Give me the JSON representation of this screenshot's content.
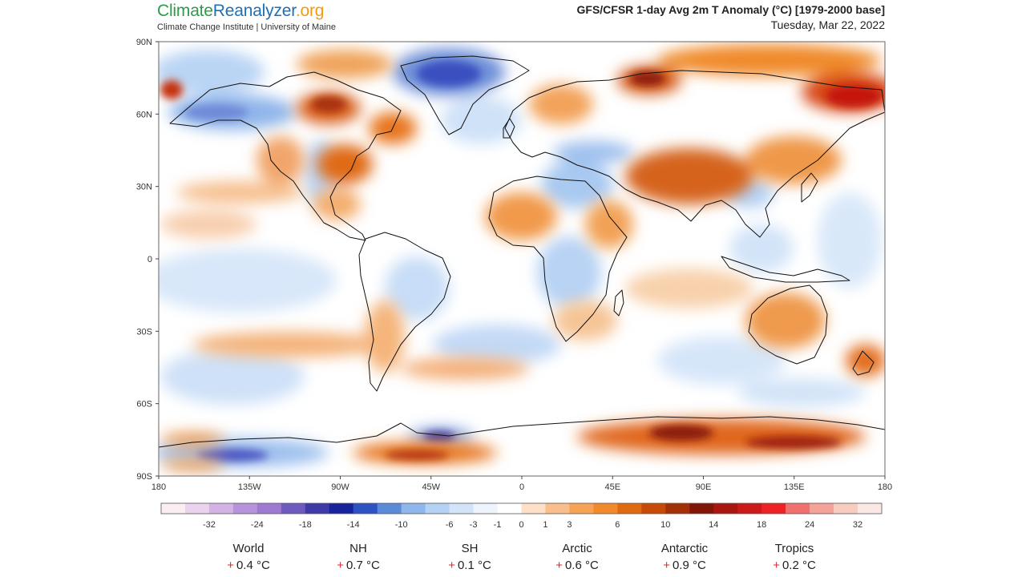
{
  "header": {
    "logo_part1": "Climate",
    "logo_part2": "Reanalyzer",
    "logo_part3": ".org",
    "subtitle": "Climate Change Institute | University of Maine",
    "title": "GFS/CFSR 1-day Avg 2m T Anomaly (°C) [1979-2000 base]",
    "date": "Tuesday, Mar 22, 2022"
  },
  "map": {
    "lat_labels": [
      "90N",
      "60N",
      "30N",
      "0",
      "30S",
      "60S",
      "90S"
    ],
    "lon_labels": [
      "180",
      "135W",
      "90W",
      "45W",
      "0",
      "45E",
      "90E",
      "135E",
      "180"
    ]
  },
  "colorbar": {
    "colors": [
      "#fbeef2",
      "#ead3ec",
      "#d3b3e4",
      "#b693da",
      "#9e7ad2",
      "#6f5bbf",
      "#3e3aa6",
      "#18239b",
      "#2d53c3",
      "#5b8ad8",
      "#8fb7ec",
      "#b5d1f4",
      "#d3e4f8",
      "#edf4fc",
      "#ffffff",
      "#fde0c7",
      "#f9be8a",
      "#f6a356",
      "#f08a2a",
      "#e06a10",
      "#c84a08",
      "#a33108",
      "#7f1608",
      "#a8160f",
      "#cc1a18",
      "#ee2222",
      "#f07070",
      "#f4a29a",
      "#f8cdbf",
      "#fbe8e4"
    ],
    "tick_labels": [
      "-32",
      "-24",
      "-18",
      "-14",
      "-10",
      "-6",
      "-3",
      "-1",
      "0",
      "1",
      "3",
      "6",
      "10",
      "14",
      "18",
      "24",
      "32"
    ]
  },
  "stats": [
    {
      "name": "World",
      "sign": "+",
      "value": "0.4 °C"
    },
    {
      "name": "NH",
      "sign": "+",
      "value": "0.7 °C"
    },
    {
      "name": "SH",
      "sign": "+",
      "value": "0.1 °C"
    },
    {
      "name": "Arctic",
      "sign": "+",
      "value": "0.6 °C"
    },
    {
      "name": "Antarctic",
      "sign": "+",
      "value": "0.9 °C"
    },
    {
      "name": "Tropics",
      "sign": "+",
      "value": "0.2 °C"
    }
  ],
  "colors": {
    "warm": "#e8741c",
    "hot": "#b31a0d",
    "cool": "#9fc4f0",
    "cold": "#3a4fc0",
    "land_outline": "#111111"
  }
}
